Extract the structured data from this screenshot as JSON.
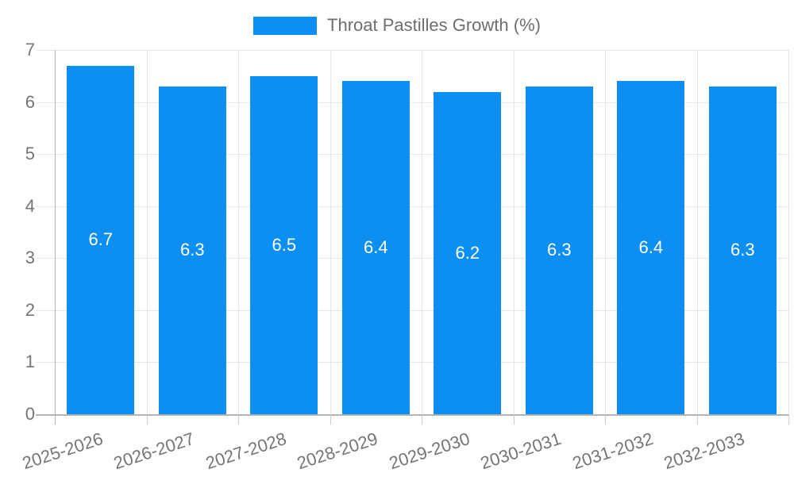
{
  "chart_data": {
    "type": "bar",
    "title": "Throat Pastilles Growth (%)",
    "legend": {
      "position": "top",
      "label": "Throat Pastilles Growth (%)"
    },
    "categories": [
      "2025-2026",
      "2026-2027",
      "2027-2028",
      "2028-2029",
      "2029-2030",
      "2030-2031",
      "2031-2032",
      "2032-2033"
    ],
    "series": [
      {
        "name": "Throat Pastilles Growth (%)",
        "values": [
          6.7,
          6.3,
          6.5,
          6.4,
          6.2,
          6.3,
          6.4,
          6.3
        ]
      }
    ],
    "value_label_decimals": 1,
    "xlabel": "",
    "ylabel": "",
    "ylim": [
      0,
      7
    ],
    "yticks": [
      0,
      1,
      2,
      3,
      4,
      5,
      6,
      7
    ],
    "grid": true
  },
  "colors": {
    "bar": "#0d8ff2",
    "grid_line": "#e6e6e6",
    "axis_line": "#b3b3b3",
    "tick_line": "#cccccc",
    "tick_label": "#757575",
    "legend_text": "#6e6e6e",
    "bar_value_label": "#ffffff",
    "background": "#ffffff"
  }
}
